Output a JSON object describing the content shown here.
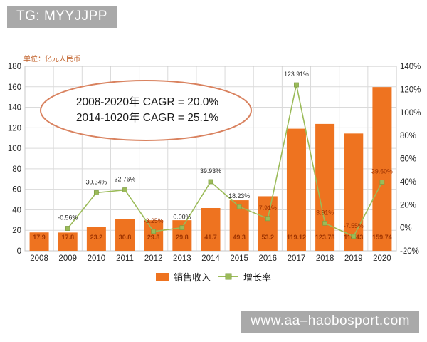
{
  "badges": {
    "tg": "TG: MYYJJPP",
    "site": "www.aa–haobosport.com"
  },
  "chart_data": {
    "type": "bar",
    "unit_label": "单位：亿元人民币",
    "categories": [
      "2008",
      "2009",
      "2010",
      "2011",
      "2012",
      "2013",
      "2014",
      "2015",
      "2016",
      "2017",
      "2018",
      "2019",
      "2020"
    ],
    "series": [
      {
        "name": "销售收入",
        "type": "bar",
        "color": "#ee7320",
        "label_color": "#9c3200",
        "values": [
          17.9,
          17.8,
          23.2,
          30.8,
          29.8,
          29.8,
          41.7,
          49.3,
          53.2,
          119.12,
          123.78,
          114.43,
          159.74
        ],
        "labels": [
          "17.9",
          "17.8",
          "23.2",
          "30.8",
          "29.8",
          "29.8",
          "41.7",
          "49.3",
          "53.2",
          "119.12",
          "123.78",
          "114.43",
          "159.74"
        ]
      },
      {
        "name": "增长率",
        "type": "line",
        "color": "#9bbb59",
        "values": [
          null,
          -0.56,
          30.34,
          32.76,
          -3.25,
          0.0,
          39.93,
          18.23,
          7.91,
          123.91,
          3.91,
          -7.55,
          39.6
        ],
        "labels": [
          null,
          "-0.56%",
          "30.34%",
          "32.76%",
          "-3.25%",
          "0.00%",
          "39.93%",
          "18.23%",
          "7.91%",
          "123.91%",
          "3.91%",
          "-7.55%",
          "39.60%"
        ]
      }
    ],
    "left_axis": {
      "min": 0,
      "max": 180,
      "step": 20,
      "ticks": [
        "0",
        "20",
        "40",
        "60",
        "80",
        "100",
        "120",
        "140",
        "160",
        "180"
      ]
    },
    "right_axis": {
      "min": -20,
      "max": 140,
      "step": 20,
      "ticks": [
        "-20%",
        "0%",
        "20%",
        "40%",
        "60%",
        "80%",
        "100%",
        "120%",
        "140%"
      ]
    },
    "annotation": {
      "lines": [
        "2008-2020年 CAGR = 20.0%",
        "2014-1020年 CAGR = 25.1%"
      ],
      "stroke": "#d9825f"
    },
    "legend": [
      "销售收入",
      "增长率"
    ],
    "grid": true,
    "legend_position": "bottom"
  },
  "colors": {
    "watermark_bg": "#a9a9a9",
    "grid": "#dadada",
    "border": "#c8c8c8",
    "axis_text": "#262626",
    "unit_text": "#bf5b21",
    "growth_label": "#262626",
    "growth_label_on_bar": "#9c3200"
  }
}
